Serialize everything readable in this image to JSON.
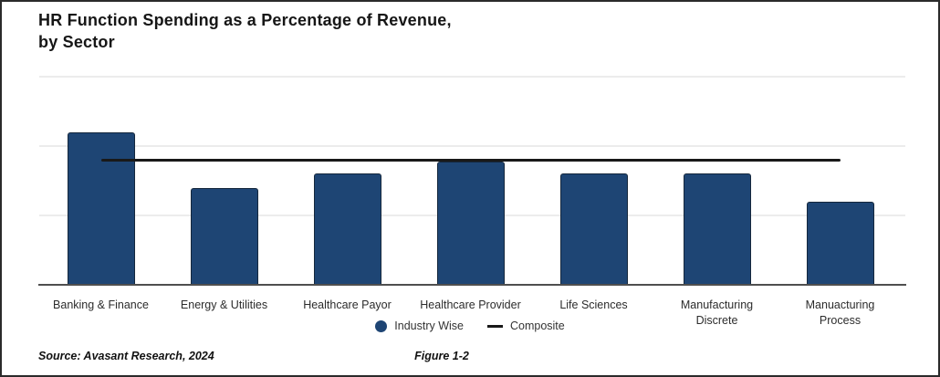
{
  "title": "HR Function Spending as a Percentage of Revenue,\nby Sector",
  "chart_data": {
    "type": "bar",
    "title": "HR Function Spending as a Percentage of Revenue, by Sector",
    "categories": [
      "Banking & Finance",
      "Energy & Utilities",
      "Healthcare Payor",
      "Healthcare Provider",
      "Life Sciences",
      "Manufacturing\nDiscrete",
      "Manuacturing\nProcess"
    ],
    "series": [
      {
        "name": "Industry Wise",
        "type": "bar",
        "values": [
          1.1,
          0.7,
          0.8,
          0.89,
          0.8,
          0.8,
          0.6
        ]
      },
      {
        "name": "Composite",
        "type": "line",
        "value": 0.9
      }
    ],
    "ylabel": "",
    "xlabel": "",
    "ylim": [
      0,
      1.5
    ],
    "gridline_interval": 0.5,
    "grid": true,
    "axis_tick_labels_visible": false,
    "values_are_estimated_from_gridlines": true,
    "legend_position": "bottom",
    "bar_color": "#1e4574",
    "composite_line_color": "#191919"
  },
  "legend": {
    "items": [
      {
        "label": "Industry Wise",
        "marker": "circle",
        "color": "#1e4574"
      },
      {
        "label": "Composite",
        "marker": "line",
        "color": "#191919"
      }
    ]
  },
  "footer": {
    "source": "Source: Avasant Research, 2024",
    "figure": "Figure 1-2"
  }
}
